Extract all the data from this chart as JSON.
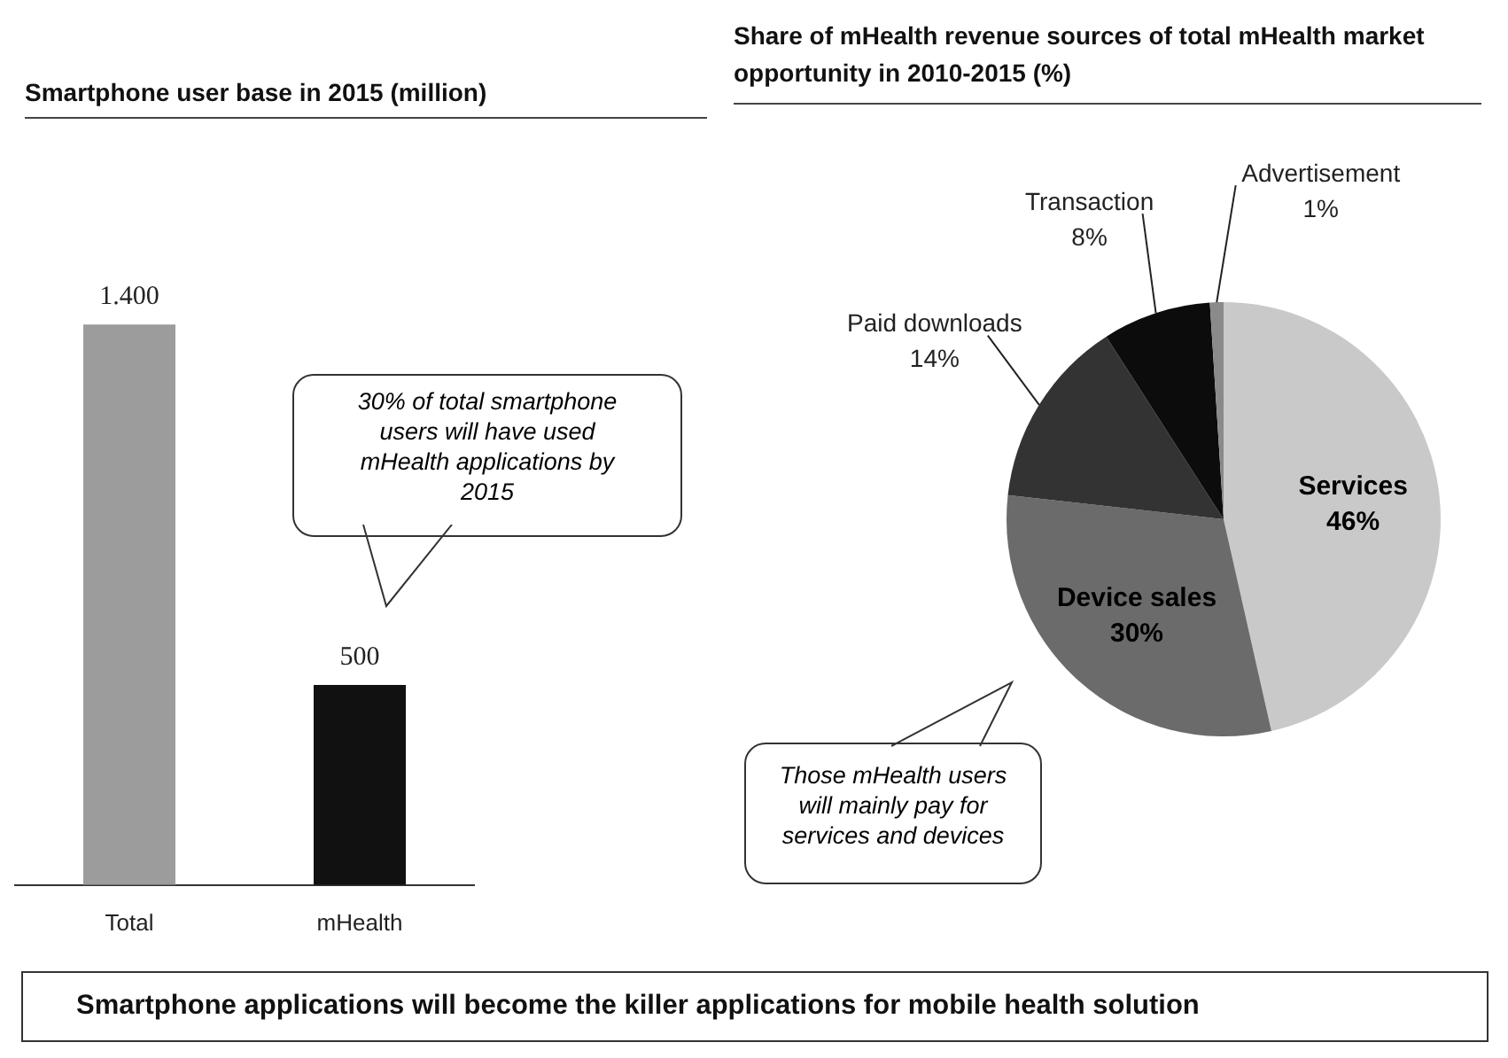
{
  "chart_data": [
    {
      "type": "bar",
      "title": "Smartphone user base in 2015 (million)",
      "categories": [
        "Total",
        "mHealth"
      ],
      "values": [
        1400,
        500
      ],
      "colors": [
        "#9c9c9c",
        "#111111"
      ],
      "value_labels": [
        "1.400",
        "500"
      ],
      "tick_labels": "x",
      "annotations": [
        "30% of total smartphone users will have used mHealth applications by 2015"
      ]
    },
    {
      "type": "pie",
      "title": "Share of mHealth revenue sources of total mHealth market opportunity in 2010-2015 (%)",
      "categories": [
        "Services",
        "Device sales",
        "Paid downloads",
        "Transaction",
        "Advertisement"
      ],
      "values": [
        46,
        30,
        14,
        8,
        1
      ],
      "colors": [
        "#c9c9c9",
        "#6b6b6b",
        "#333333",
        "#0c0c0c",
        "#8a8a8a"
      ],
      "value_labels": [
        "46%",
        "30%",
        "14%",
        "8%",
        "1%"
      ],
      "annotations": [
        "Those mHealth users will mainly pay for services and devices",
        "Smartphone applications will become the killer applications for mobile health solution"
      ]
    }
  ]
}
